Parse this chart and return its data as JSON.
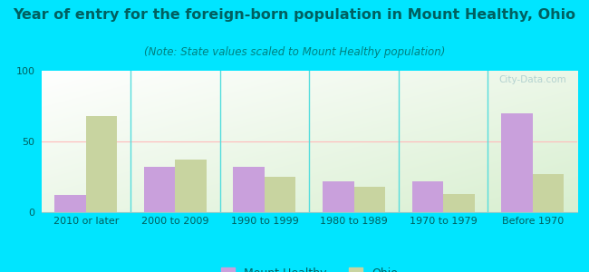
{
  "title": "Year of entry for the foreign-born population in Mount Healthy, Ohio",
  "subtitle": "(Note: State values scaled to Mount Healthy population)",
  "categories": [
    "2010 or later",
    "2000 to 2009",
    "1990 to 1999",
    "1980 to 1989",
    "1970 to 1979",
    "Before 1970"
  ],
  "mount_healthy": [
    12,
    32,
    32,
    22,
    22,
    70
  ],
  "ohio": [
    68,
    37,
    25,
    18,
    13,
    27
  ],
  "mount_healthy_color": "#c9a0dc",
  "ohio_color": "#c8d4a0",
  "background_outer": "#00e5ff",
  "plot_bg_color": "#e8f5e0",
  "ylim": [
    0,
    100
  ],
  "yticks": [
    0,
    50,
    100
  ],
  "bar_width": 0.35,
  "title_fontsize": 11.5,
  "subtitle_fontsize": 8.5,
  "tick_fontsize": 8,
  "legend_fontsize": 9,
  "watermark": "City-Data.com",
  "title_color": "#006060",
  "subtitle_color": "#008080",
  "tick_color": "#006060"
}
